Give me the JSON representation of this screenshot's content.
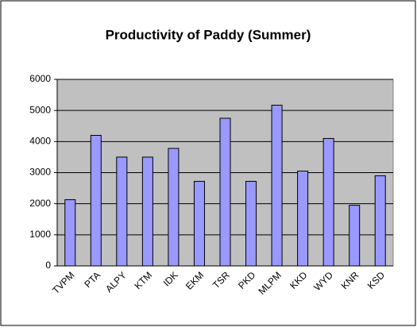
{
  "chart_data": {
    "type": "bar",
    "title": "Productivity of Paddy (Summer)",
    "categories": [
      "TVPM",
      "PTA",
      "ALPY",
      "KTM",
      "IDK",
      "EKM",
      "TSR",
      "PKD",
      "MLPM",
      "KKD",
      "WYD",
      "KNR",
      "KSD"
    ],
    "values": [
      2130,
      4200,
      3500,
      3500,
      3780,
      2720,
      4750,
      2720,
      5170,
      3050,
      4100,
      1950,
      2900
    ],
    "color": "#9999ff",
    "ylim": [
      0,
      6000
    ],
    "yticks": [
      0,
      1000,
      2000,
      3000,
      4000,
      5000,
      6000
    ],
    "grid": true
  }
}
